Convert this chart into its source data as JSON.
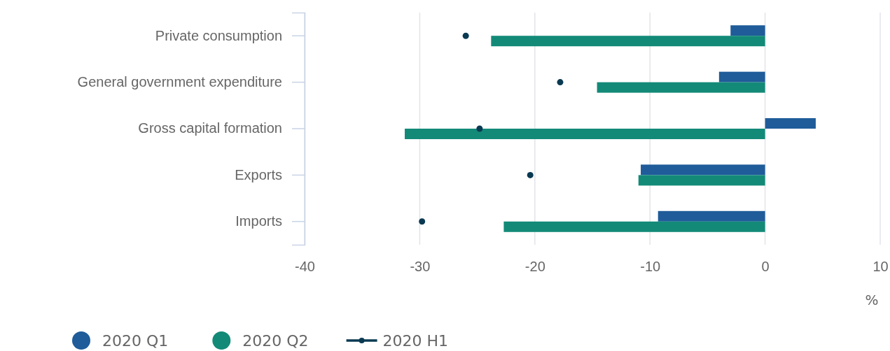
{
  "chart_data": {
    "type": "bar",
    "orientation": "horizontal",
    "xlabel": "%",
    "categories": [
      "Private consumption",
      "General government expenditure",
      "Gross capital formation",
      "Exports",
      "Imports"
    ],
    "series": [
      {
        "name": "2020 Q1",
        "color": "#1f5c99",
        "values": [
          -3.0,
          -4.0,
          4.4,
          -10.8,
          -9.3
        ]
      },
      {
        "name": "2020 Q2",
        "color": "#138a78",
        "values": [
          -23.8,
          -14.6,
          -31.3,
          -11.0,
          -22.7
        ]
      },
      {
        "name": "2020 H1",
        "color": "#0a3a52",
        "type": "scatter",
        "marker": "circle",
        "values": [
          -26.0,
          -17.8,
          -24.8,
          -20.4,
          -29.8
        ]
      }
    ],
    "xlim": [
      -40,
      10
    ],
    "xticks": [
      -40,
      -30,
      -20,
      -10,
      0,
      10
    ],
    "grid": "x",
    "legend": "bottom left"
  }
}
